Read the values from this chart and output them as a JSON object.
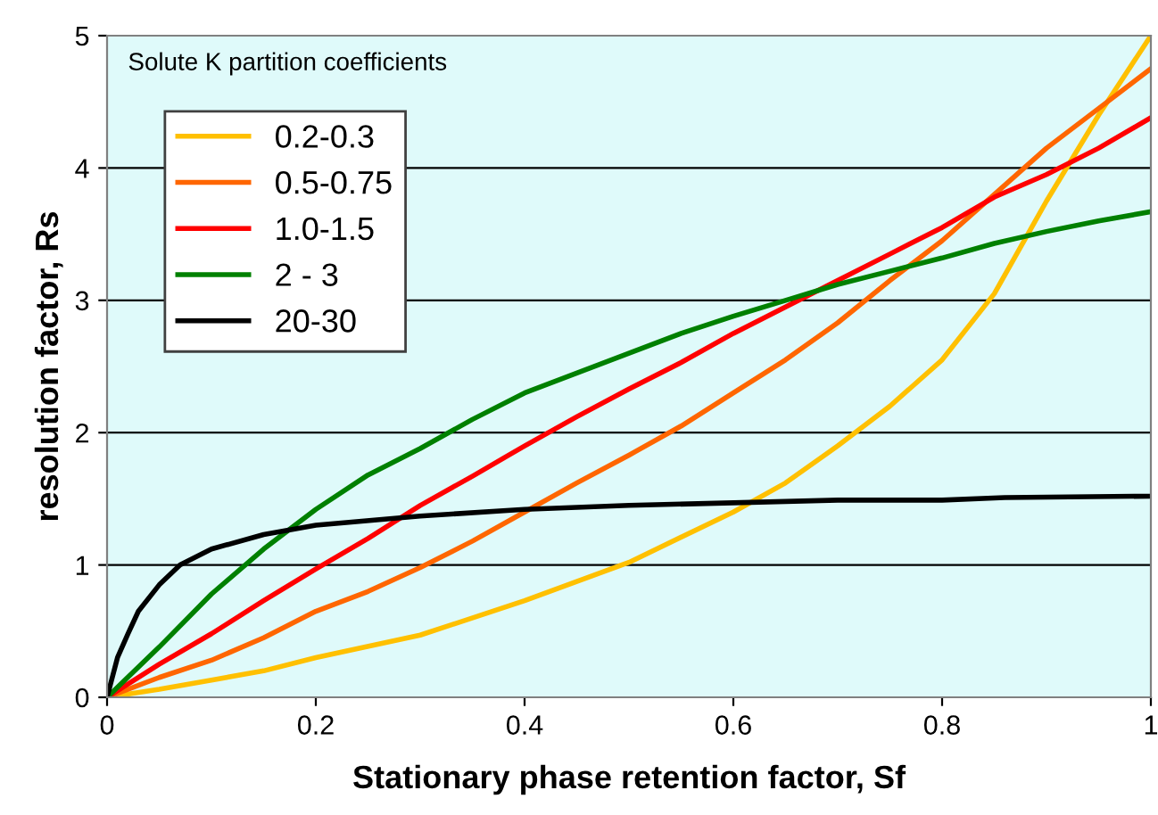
{
  "chart_data": {
    "type": "line",
    "xlabel": "Stationary phase retention factor, Sf",
    "ylabel": "resolution factor, Rs",
    "legend_title": "Solute K partition coefficients",
    "xlim": [
      0,
      1
    ],
    "ylim": [
      0,
      5
    ],
    "xticks": [
      0,
      0.2,
      0.4,
      0.6,
      0.8,
      1
    ],
    "yticks": [
      0,
      1,
      2,
      3,
      4,
      5
    ],
    "grid": "y",
    "legend": "top left",
    "marker": "none",
    "line_style": "solid",
    "series": [
      {
        "name": "0.2-0.3",
        "color": "#ffc000",
        "x": [
          0,
          0.05,
          0.1,
          0.15,
          0.2,
          0.3,
          0.4,
          0.5,
          0.6,
          0.65,
          0.7,
          0.75,
          0.8,
          0.85,
          0.9,
          0.95,
          1.0
        ],
        "values": [
          0,
          0.06,
          0.13,
          0.2,
          0.3,
          0.47,
          0.73,
          1.02,
          1.4,
          1.62,
          1.9,
          2.2,
          2.55,
          3.05,
          3.75,
          4.4,
          5.0
        ]
      },
      {
        "name": "0.5-0.75",
        "color": "#ff6600",
        "x": [
          0,
          0.05,
          0.1,
          0.15,
          0.2,
          0.25,
          0.3,
          0.35,
          0.4,
          0.45,
          0.5,
          0.55,
          0.6,
          0.65,
          0.7,
          0.75,
          0.8,
          0.85,
          0.9,
          0.95,
          1.0
        ],
        "values": [
          0,
          0.15,
          0.28,
          0.45,
          0.65,
          0.8,
          0.98,
          1.18,
          1.4,
          1.62,
          1.83,
          2.05,
          2.3,
          2.55,
          2.83,
          3.15,
          3.45,
          3.8,
          4.15,
          4.45,
          4.75
        ]
      },
      {
        "name": "1.0-1.5",
        "color": "#ff0000",
        "x": [
          0,
          0.05,
          0.1,
          0.15,
          0.2,
          0.25,
          0.3,
          0.35,
          0.4,
          0.45,
          0.5,
          0.55,
          0.6,
          0.65,
          0.7,
          0.75,
          0.8,
          0.85,
          0.9,
          0.95,
          1.0
        ],
        "values": [
          0,
          0.25,
          0.48,
          0.73,
          0.97,
          1.2,
          1.45,
          1.67,
          1.9,
          2.12,
          2.33,
          2.53,
          2.75,
          2.95,
          3.15,
          3.35,
          3.55,
          3.78,
          3.95,
          4.15,
          4.38
        ]
      },
      {
        "name": "2 - 3",
        "color": "#008000",
        "x": [
          0,
          0.05,
          0.1,
          0.15,
          0.2,
          0.25,
          0.3,
          0.35,
          0.4,
          0.45,
          0.5,
          0.55,
          0.6,
          0.65,
          0.7,
          0.75,
          0.8,
          0.85,
          0.9,
          0.95,
          1.0
        ],
        "values": [
          0,
          0.38,
          0.78,
          1.12,
          1.42,
          1.68,
          1.88,
          2.1,
          2.3,
          2.45,
          2.6,
          2.75,
          2.88,
          3.0,
          3.12,
          3.22,
          3.32,
          3.43,
          3.52,
          3.6,
          3.67
        ]
      },
      {
        "name": "20-30",
        "color": "#000000",
        "x": [
          0,
          0.01,
          0.02,
          0.03,
          0.05,
          0.07,
          0.1,
          0.15,
          0.2,
          0.3,
          0.4,
          0.5,
          0.6,
          0.7,
          0.8,
          0.86,
          1.0
        ],
        "values": [
          0,
          0.3,
          0.48,
          0.65,
          0.85,
          1.0,
          1.12,
          1.23,
          1.3,
          1.37,
          1.42,
          1.45,
          1.47,
          1.49,
          1.49,
          1.51,
          1.52
        ]
      }
    ]
  }
}
